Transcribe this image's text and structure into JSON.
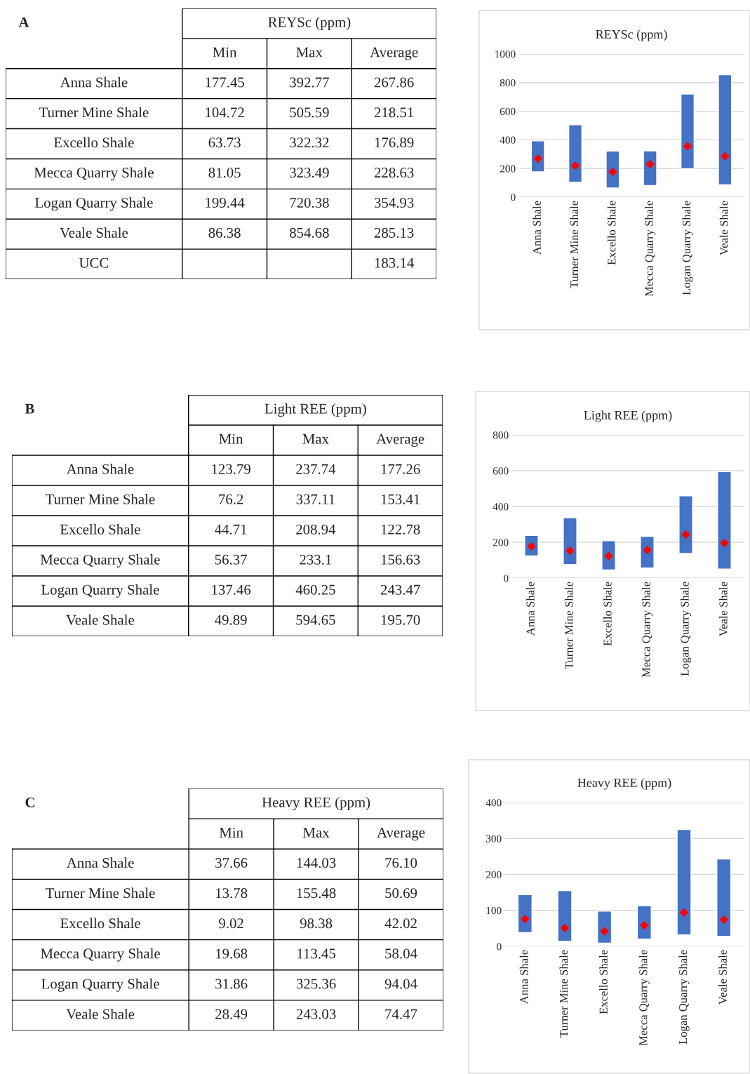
{
  "chart_data": [
    {
      "type": "other",
      "title": "REYSc (ppm)",
      "annotations": [
        "A"
      ],
      "categories": [
        "Min",
        "Max",
        "Average"
      ],
      "y_categories": [
        "Anna Shale",
        "Turner Mine Shale",
        "Excello Shale",
        "Mecca Quarry Shale",
        "Logan Quarry Shale",
        "Veale Shale",
        "UCC"
      ],
      "cell_labels": [
        [
          "177.45",
          "392.77",
          "267.86"
        ],
        [
          "104.72",
          "505.59",
          "218.51"
        ],
        [
          "63.73",
          "322.32",
          "176.89"
        ],
        [
          "81.05",
          "323.49",
          "228.63"
        ],
        [
          "199.44",
          "720.38",
          "354.93"
        ],
        [
          "86.38",
          "854.68",
          "285.13"
        ],
        [
          null,
          null,
          "183.14"
        ]
      ]
    },
    {
      "type": "bar",
      "title": "REYSc (ppm)",
      "categories": [
        "Anna Shale",
        "Turner Mine Shale",
        "Excello Shale",
        "Mecca Quarry Shale",
        "Logan Quarry Shale",
        "Veale Shale"
      ],
      "ylim": [
        0,
        1000
      ],
      "yticks": [
        0,
        200,
        400,
        600,
        800,
        1000
      ],
      "grid": "y",
      "series": [
        {
          "type": "bar",
          "color": "#4472c4",
          "base": [
            177,
            105,
            64,
            81,
            199,
            86
          ],
          "values": [
            216,
            401,
            258,
            242,
            521,
            769
          ]
        },
        {
          "type": "scatter",
          "marker": "diamond",
          "color": "#ff0000",
          "values": [
            268,
            219,
            177,
            229,
            355,
            285
          ]
        }
      ]
    },
    {
      "type": "other",
      "title": "Light REE (ppm)",
      "annotations": [
        "B"
      ],
      "categories": [
        "Min",
        "Max",
        "Average"
      ],
      "y_categories": [
        "Anna Shale",
        "Turner Mine Shale",
        "Excello Shale",
        "Mecca Quarry Shale",
        "Logan Quarry Shale",
        "Veale Shale"
      ],
      "cell_labels": [
        [
          "123.79",
          "237.74",
          "177.26"
        ],
        [
          "76.2",
          "337.11",
          "153.41"
        ],
        [
          "44.71",
          "208.94",
          "122.78"
        ],
        [
          "56.37",
          "233.1",
          "156.63"
        ],
        [
          "137.46",
          "460.25",
          "243.47"
        ],
        [
          "49.89",
          "594.65",
          "195.70"
        ]
      ]
    },
    {
      "type": "bar",
      "title": "Light REE (ppm)",
      "categories": [
        "Anna Shale",
        "Turner Mine Shale",
        "Excello Shale",
        "Mecca Quarry Shale",
        "Logan Quarry Shale",
        "Veale Shale"
      ],
      "ylim": [
        0,
        800
      ],
      "yticks": [
        0,
        200,
        400,
        600,
        800
      ],
      "grid": "y",
      "series": [
        {
          "type": "bar",
          "color": "#4472c4",
          "base": [
            124,
            76,
            45,
            56,
            137,
            50
          ],
          "values": [
            114,
            261,
            164,
            177,
            323,
            545
          ]
        },
        {
          "type": "scatter",
          "marker": "diamond",
          "color": "#ff0000",
          "values": [
            177,
            153,
            123,
            157,
            243,
            196
          ]
        }
      ]
    },
    {
      "type": "other",
      "title": "Heavy REE (ppm)",
      "annotations": [
        "C"
      ],
      "categories": [
        "Min",
        "Max",
        "Average"
      ],
      "y_categories": [
        "Anna Shale",
        "Turner Mine Shale",
        "Excello Shale",
        "Mecca Quarry Shale",
        "Logan Quarry Shale",
        "Veale Shale"
      ],
      "cell_labels": [
        [
          "37.66",
          "144.03",
          "76.10"
        ],
        [
          "13.78",
          "155.48",
          "50.69"
        ],
        [
          "9.02",
          "98.38",
          "42.02"
        ],
        [
          "19.68",
          "113.45",
          "58.04"
        ],
        [
          "31.86",
          "325.36",
          "94.04"
        ],
        [
          "28.49",
          "243.03",
          "74.47"
        ]
      ]
    },
    {
      "type": "bar",
      "title": "Heavy REE (ppm)",
      "categories": [
        "Anna Shale",
        "Turner Mine Shale",
        "Excello Shale",
        "Mecca Quarry Shale",
        "Logan Quarry Shale",
        "Veale Shale"
      ],
      "ylim": [
        0,
        400
      ],
      "yticks": [
        0,
        100,
        200,
        300,
        400
      ],
      "grid": "y",
      "series": [
        {
          "type": "bar",
          "color": "#4472c4",
          "base": [
            38,
            14,
            9,
            20,
            32,
            28
          ],
          "values": [
            106,
            141,
            89,
            93,
            293,
            215
          ]
        },
        {
          "type": "scatter",
          "marker": "diamond",
          "color": "#ff0000",
          "values": [
            76,
            51,
            42,
            58,
            94,
            74
          ]
        }
      ]
    }
  ]
}
